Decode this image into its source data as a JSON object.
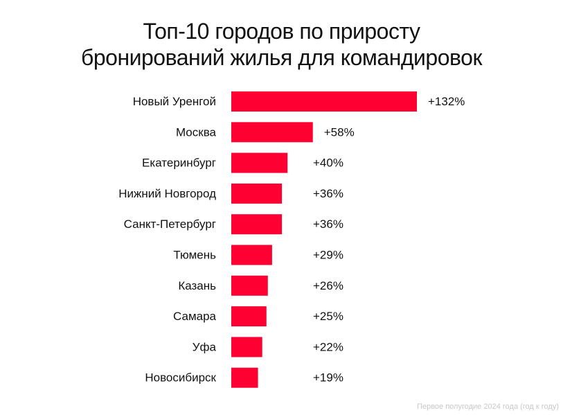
{
  "chart_data": {
    "type": "bar",
    "orientation": "horizontal",
    "title_lines": [
      "Топ-10 городов по приросту",
      "бронирований жилья для командировок"
    ],
    "categories": [
      "Новый Уренгой",
      "Москва",
      "Екатеринбург",
      "Нижний Новгород",
      "Санкт-Петербург",
      "Тюмень",
      "Казань",
      "Самара",
      "Уфа",
      "Новосибирск"
    ],
    "values": [
      132,
      58,
      40,
      36,
      36,
      29,
      26,
      25,
      22,
      19
    ],
    "value_labels": [
      "+132%",
      "+58%",
      "+40%",
      "+36%",
      "+36%",
      "+29%",
      "+26%",
      "+25%",
      "+22%",
      "+19%"
    ],
    "xlim": [
      0,
      132
    ],
    "grid": false,
    "bar_color": "#ff0033",
    "footnote": "Первое полугодие 2024 года (год к году)"
  }
}
